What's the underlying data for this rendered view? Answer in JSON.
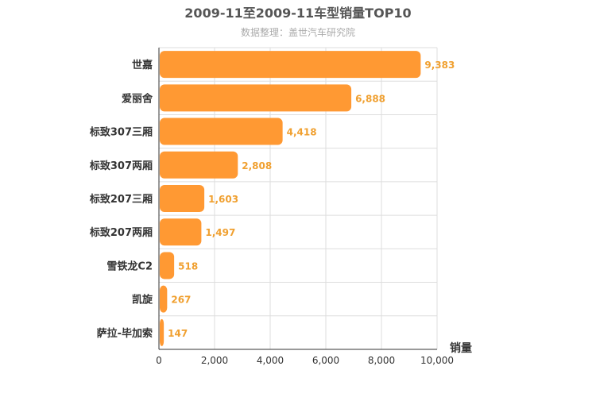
{
  "chart_data": {
    "type": "bar",
    "orientation": "horizontal",
    "title": "2009-11至2009-11车型销量TOP10",
    "subtitle": "数据整理：盖世汽车研究院",
    "xlabel": "销量",
    "ylabel": "",
    "xlim": [
      0,
      10000
    ],
    "x_ticks": [
      "0",
      "2,000",
      "4,000",
      "6,000",
      "8,000",
      "10,000"
    ],
    "categories": [
      "世嘉",
      "爱丽舍",
      "标致307三厢",
      "标致307两厢",
      "标致207三厢",
      "标致207两厢",
      "雪铁龙C2",
      "凯旋",
      "萨拉-毕加索"
    ],
    "values": [
      9383,
      6888,
      4418,
      2808,
      1603,
      1497,
      518,
      267,
      147
    ],
    "value_labels": [
      "9,383",
      "6,888",
      "4,418",
      "2,808",
      "1,603",
      "1,497",
      "518",
      "267",
      "147"
    ],
    "grid": true,
    "legend": "none",
    "colors": {
      "bar": "#ff9933",
      "value_label": "#f0a030",
      "grid": "#dddddd",
      "axis": "#333333"
    }
  }
}
